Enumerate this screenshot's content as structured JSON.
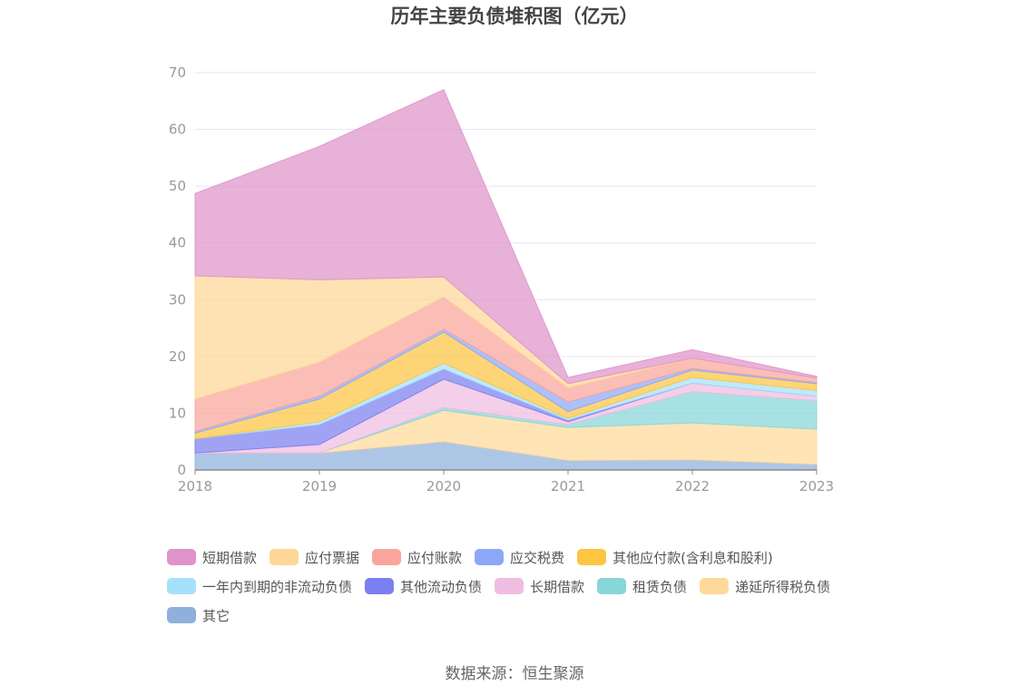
{
  "chart_data": {
    "type": "area",
    "title": "历年主要负债堆积图（亿元）",
    "stacked": true,
    "x": [
      "2018",
      "2019",
      "2020",
      "2021",
      "2022",
      "2023"
    ],
    "ylim": [
      0,
      70
    ],
    "yticks": [
      0,
      10,
      20,
      30,
      40,
      50,
      60,
      70
    ],
    "grid": true,
    "legend_position": "bottom",
    "series": [
      {
        "name": "其它",
        "color": "#8fb0dc",
        "values": [
          3.0,
          3.0,
          5.0,
          1.7,
          1.8,
          1.0
        ]
      },
      {
        "name": "递延所得税负债",
        "color": "#ffd99a",
        "values": [
          0.0,
          0.0,
          5.5,
          5.8,
          6.5,
          6.2
        ]
      },
      {
        "name": "租赁负债",
        "color": "#87d6d8",
        "values": [
          0.0,
          0.0,
          0.5,
          0.5,
          5.5,
          5.0
        ]
      },
      {
        "name": "长期借款",
        "color": "#f0bde0",
        "values": [
          0.0,
          1.5,
          5.0,
          0.5,
          1.5,
          0.8
        ]
      },
      {
        "name": "其他流动负债",
        "color": "#7b80f0",
        "values": [
          2.5,
          3.5,
          1.8,
          0.3,
          0.0,
          0.0
        ]
      },
      {
        "name": "一年内到期的非流动负债",
        "color": "#a6e1fb",
        "values": [
          0.0,
          0.5,
          1.0,
          0.3,
          1.0,
          1.0
        ]
      },
      {
        "name": "其他应付款(含利息和股利)",
        "color": "#fcc542",
        "values": [
          1.0,
          4.0,
          5.5,
          1.2,
          1.3,
          1.2
        ]
      },
      {
        "name": "应交税费",
        "color": "#8da7f8",
        "values": [
          0.3,
          0.5,
          0.5,
          1.7,
          0.3,
          0.2
        ]
      },
      {
        "name": "应付账款",
        "color": "#f9a59b",
        "values": [
          5.7,
          6.0,
          5.7,
          2.5,
          1.8,
          0.8
        ]
      },
      {
        "name": "应付票据",
        "color": "#fdd797",
        "values": [
          21.7,
          14.5,
          3.5,
          0.7,
          0.0,
          0.0
        ]
      },
      {
        "name": "短期借款",
        "color": "#df93c9",
        "values": [
          14.5,
          23.5,
          33.0,
          1.1,
          1.5,
          0.3
        ]
      }
    ],
    "legend_order": [
      "短期借款",
      "应付票据",
      "应付账款",
      "应交税费",
      "其他应付款(含利息和股利)",
      "一年内到期的非流动负债",
      "其他流动负债",
      "长期借款",
      "租赁负债",
      "递延所得税负债",
      "其它"
    ]
  },
  "footer": {
    "source": "数据来源：恒生聚源"
  }
}
